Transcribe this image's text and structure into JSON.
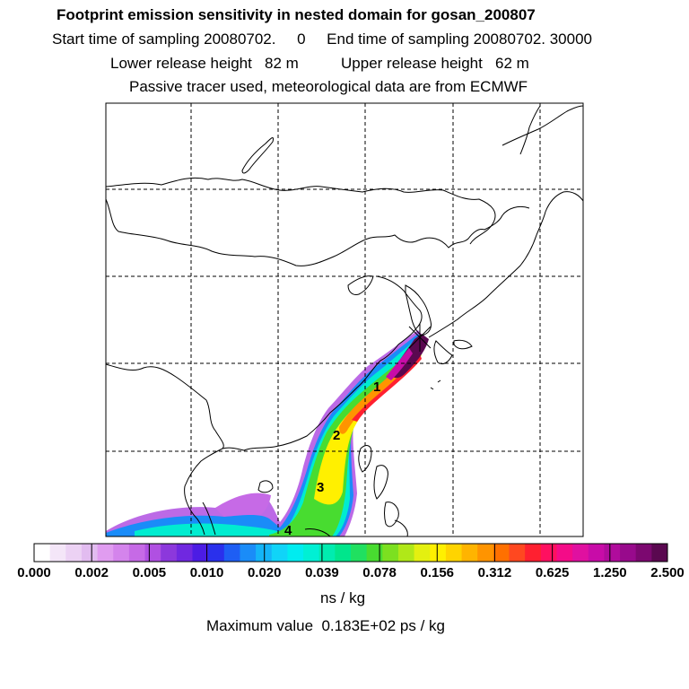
{
  "header": {
    "title": "Footprint emission sensitivity in nested domain for gosan_200807",
    "sampling_line": "Start time of sampling 20080702.     0     End time of sampling 20080702. 30000",
    "release_line": "Lower release height   82 m          Upper release height   62 m",
    "tracer_line": "Passive tracer used, meteorological data are from ECMWF"
  },
  "map": {
    "receptor_marker": "gosan-receptor-cross",
    "day_labels": [
      "1",
      "2",
      "3",
      "4"
    ]
  },
  "colorbar": {
    "tick_labels": [
      "0.000",
      "0.002",
      "0.005",
      "0.010",
      "0.020",
      "0.039",
      "0.078",
      "0.156",
      "0.312",
      "0.625",
      "1.250",
      "2.500"
    ],
    "unit": "ns / kg",
    "colors": [
      "#ffffff",
      "#f4e6f8",
      "#ecd2f4",
      "#e2bcf0",
      "#e09cf0",
      "#d484ec",
      "#c66ae6",
      "#b050e2",
      "#8c38dc",
      "#7028e0",
      "#4c1ce4",
      "#2a30ec",
      "#1e5ef4",
      "#1a8cf8",
      "#14b4f8",
      "#10d4f8",
      "#00ecf0",
      "#00f0d4",
      "#00ecb0",
      "#00e68c",
      "#20e060",
      "#48dc30",
      "#7ce020",
      "#b0e818",
      "#e4f010",
      "#fff000",
      "#ffd400",
      "#ffb400",
      "#ff9400",
      "#ff7000",
      "#ff4820",
      "#ff2030",
      "#ff1060",
      "#f40c88",
      "#e010a0",
      "#c80ca8",
      "#b00c9c",
      "#980a8c",
      "#7c0870",
      "#5a0850"
    ]
  },
  "footer": {
    "max_value": "Maximum value  0.183E+02 ps / kg"
  }
}
